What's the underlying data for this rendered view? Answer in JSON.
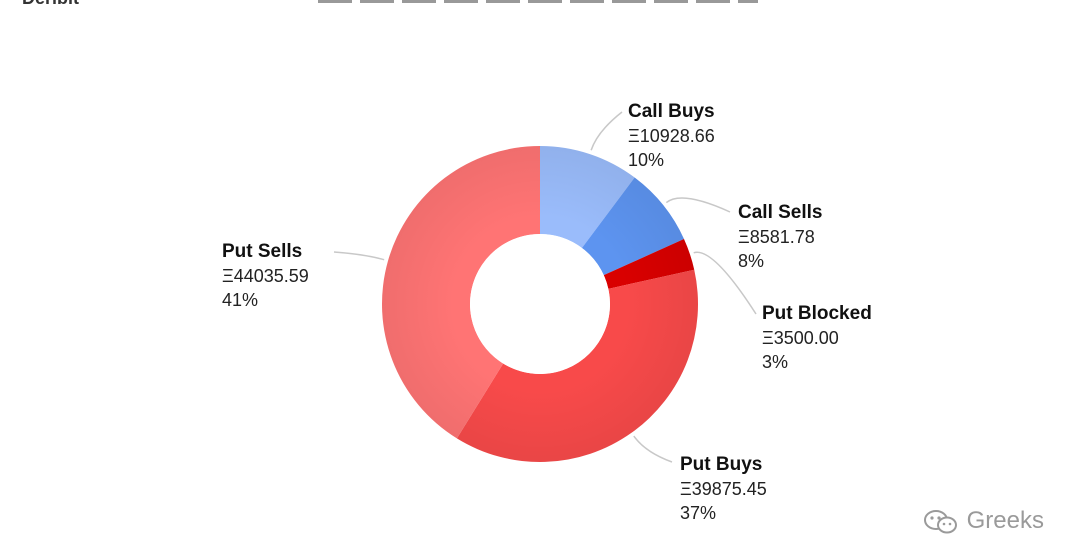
{
  "header": {
    "logo_text": "Deribit"
  },
  "watermark": {
    "text": "Greeks",
    "icon": "wechat-icon"
  },
  "colors": {
    "call_buys": "#9ABCFB",
    "call_sells": "#5D94F0",
    "put_blocked": "#D90000",
    "put_buys": "#F84A4A",
    "put_sells": "#FF7474",
    "leader": "#C8C8C8"
  },
  "chart_data": {
    "type": "pie",
    "donut": true,
    "title": "",
    "slices": [
      {
        "name": "Call Buys",
        "value_label": "Ξ10928.66",
        "value": 10928.66,
        "percent": "10%"
      },
      {
        "name": "Call Sells",
        "value_label": "Ξ8581.78",
        "value": 8581.78,
        "percent": "8%"
      },
      {
        "name": "Put Blocked",
        "value_label": "Ξ3500.00",
        "value": 3500.0,
        "percent": "3%"
      },
      {
        "name": "Put Buys",
        "value_label": "Ξ39875.45",
        "value": 39875.45,
        "percent": "37%"
      },
      {
        "name": "Put Sells",
        "value_label": "Ξ44035.59",
        "value": 44035.59,
        "percent": "41%"
      }
    ]
  }
}
